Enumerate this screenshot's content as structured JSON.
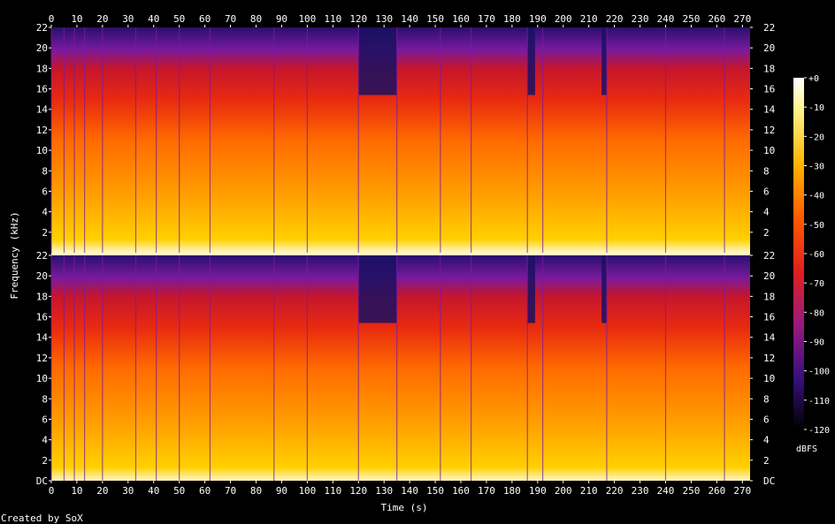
{
  "chart_data": {
    "type": "heatmap",
    "title": "",
    "xlabel": "Time (s)",
    "ylabel": "Frequency (kHz)",
    "colorbar_label": "dBFS",
    "footer": "Created by SoX",
    "xlim": [
      0,
      273
    ],
    "x_ticks": [
      0,
      10,
      20,
      30,
      40,
      50,
      60,
      70,
      80,
      90,
      100,
      110,
      120,
      130,
      140,
      150,
      160,
      170,
      180,
      190,
      200,
      210,
      220,
      230,
      240,
      250,
      260,
      270
    ],
    "channels": [
      {
        "y_ticks": [
          "2",
          "4",
          "6",
          "8",
          "10",
          "12",
          "14",
          "16",
          "18",
          "20",
          "22"
        ],
        "ylim": [
          0,
          22
        ]
      },
      {
        "y_ticks": [
          "DC",
          "2",
          "4",
          "6",
          "8",
          "10",
          "12",
          "14",
          "16",
          "18",
          "20",
          "22"
        ],
        "ylim": [
          0,
          22
        ]
      }
    ],
    "colorbar": {
      "ticks": [
        "+0",
        "-10",
        "-20",
        "-30",
        "-40",
        "-50",
        "-60",
        "-70",
        "-80",
        "-90",
        "-100",
        "-110",
        "-120"
      ],
      "range": [
        -120,
        0
      ]
    },
    "colors": {
      "hot": "#fff8c8",
      "yellow": "#ffd000",
      "orange": "#ff7a00",
      "red": "#e0201e",
      "purple": "#7a1a9e",
      "navy": "#1a1060",
      "background": "#000000"
    },
    "quiet_segments_s": [
      [
        120,
        135
      ],
      [
        186,
        189
      ],
      [
        215,
        217
      ]
    ],
    "track_start_s": [
      0,
      5,
      9,
      13,
      20,
      33,
      41,
      50,
      62,
      87,
      100,
      120,
      135,
      152,
      164,
      186,
      192,
      217,
      240,
      263
    ]
  }
}
